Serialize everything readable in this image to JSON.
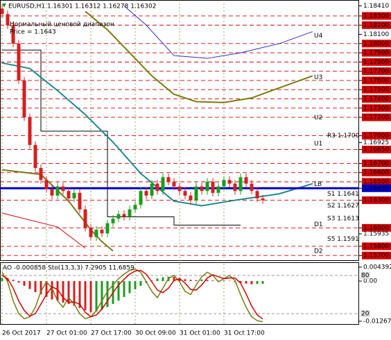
{
  "chart_data": [
    {
      "type": "candlestick",
      "title": "EURUSD,H1  1.16301 1.16312 1.16278 1.16302",
      "subtitle": "Нормальный ценовой диапазон",
      "annotation": "Price = 1.1643",
      "categories": [
        "26 Oct 2017",
        null,
        null,
        null,
        null,
        null,
        null,
        null,
        "27 Oct 01:00",
        null,
        null,
        null,
        null,
        null,
        null,
        null,
        "27 Oct 17:00",
        null,
        null,
        null,
        null,
        null,
        null,
        null,
        "30 Oct 09:00",
        null,
        null,
        null,
        null,
        null,
        null,
        null,
        "31 Oct 01:00",
        null,
        null,
        null,
        null,
        null,
        null,
        null,
        "31 Oct 17:00",
        null,
        null,
        null,
        null,
        null,
        null,
        null
      ],
      "open": [
        1.1838,
        1.1832,
        1.182,
        1.18,
        1.176,
        1.172,
        1.169,
        1.1665,
        1.1652,
        1.1642,
        1.1635,
        1.1645,
        1.164,
        1.1632,
        1.1638,
        1.162,
        1.16,
        1.159,
        1.1598,
        1.1594,
        1.1605,
        1.161,
        1.1615,
        1.1612,
        1.162,
        1.1625,
        1.164,
        1.1635,
        1.1648,
        1.164,
        1.1655,
        1.165,
        1.1645,
        1.164,
        1.1635,
        1.163,
        1.1645,
        1.164,
        1.165,
        1.1638,
        1.1645,
        1.1652,
        1.1648,
        1.164,
        1.1655,
        1.1648,
        1.164,
        1.1632
      ],
      "high": [
        1.1842,
        1.1836,
        1.1824,
        1.1804,
        1.1764,
        1.1724,
        1.1694,
        1.1669,
        1.1656,
        1.1646,
        1.1649,
        1.1649,
        1.1644,
        1.1642,
        1.1642,
        1.1624,
        1.1604,
        1.1602,
        1.1602,
        1.1609,
        1.1614,
        1.1619,
        1.1619,
        1.1624,
        1.1629,
        1.1644,
        1.1644,
        1.1652,
        1.1652,
        1.1659,
        1.1659,
        1.1654,
        1.1649,
        1.1644,
        1.1639,
        1.1649,
        1.1649,
        1.1654,
        1.1654,
        1.1649,
        1.1656,
        1.1656,
        1.1652,
        1.1659,
        1.1659,
        1.1652,
        1.1644,
        1.1636
      ],
      "low": [
        1.1828,
        1.1816,
        1.1796,
        1.1756,
        1.1716,
        1.1686,
        1.1661,
        1.1648,
        1.1638,
        1.1631,
        1.1631,
        1.1636,
        1.1628,
        1.1628,
        1.1616,
        1.1596,
        1.1586,
        1.1586,
        1.159,
        1.159,
        1.1601,
        1.1606,
        1.1608,
        1.1608,
        1.1616,
        1.1621,
        1.1631,
        1.1631,
        1.1636,
        1.1636,
        1.1646,
        1.1641,
        1.1636,
        1.1631,
        1.1626,
        1.1626,
        1.1636,
        1.1636,
        1.1634,
        1.1634,
        1.1641,
        1.1644,
        1.1636,
        1.1636,
        1.1644,
        1.1636,
        1.1628,
        1.1626
      ],
      "close": [
        1.1832,
        1.182,
        1.18,
        1.176,
        1.172,
        1.169,
        1.1665,
        1.1652,
        1.1642,
        1.1635,
        1.1645,
        1.164,
        1.1632,
        1.1638,
        1.162,
        1.16,
        1.159,
        1.1598,
        1.1594,
        1.1605,
        1.161,
        1.1615,
        1.1612,
        1.162,
        1.1625,
        1.164,
        1.1635,
        1.1648,
        1.164,
        1.1655,
        1.165,
        1.1645,
        1.164,
        1.1635,
        1.163,
        1.1645,
        1.164,
        1.165,
        1.1638,
        1.1645,
        1.1652,
        1.1648,
        1.164,
        1.1655,
        1.1648,
        1.164,
        1.1632,
        1.163
      ],
      "up_color": "#1e9b1e",
      "down_color": "#d42020",
      "ylim": [
        1.15649,
        1.18473
      ],
      "yticks": [
        {
          "value": 1.1841,
          "label": "1.18410"
        },
        {
          "value": 1.183,
          "label": "1.18300"
        },
        {
          "value": 1.182,
          "label": "1.18200"
        },
        {
          "value": 1.181,
          "label": "1.18100"
        },
        {
          "value": 1.18,
          "label": "1.18000"
        },
        {
          "value": 1.179,
          "label": "1.17900"
        },
        {
          "value": 1.178,
          "label": "1.17800"
        },
        {
          "value": 1.177,
          "label": "1.17700"
        },
        {
          "value": 1.176,
          "label": "1.17600"
        },
        {
          "value": 1.175,
          "label": "1.17500"
        },
        {
          "value": 1.174,
          "label": "1.17400"
        },
        {
          "value": 1.173,
          "label": "1.17300"
        },
        {
          "value": 1.172,
          "label": "1.17200"
        },
        {
          "value": 1.17,
          "label": "1.17000"
        },
        {
          "value": 1.16925,
          "label": "1.16925"
        },
        {
          "value": 1.1685,
          "label": "1.16850"
        },
        {
          "value": 1.167,
          "label": "1.16700"
        },
        {
          "value": 1.166,
          "label": "1.16600"
        },
        {
          "value": 1.165,
          "label": "1.16500"
        },
        {
          "value": 1.1643,
          "label": "1.16430"
        },
        {
          "value": 1.163,
          "label": "1.16300"
        },
        {
          "value": 1.16,
          "label": "1.16000"
        },
        {
          "value": 1.15935,
          "label": "1.15935"
        },
        {
          "value": 1.158,
          "label": "1.15800"
        },
        {
          "value": 1.157,
          "label": "1.15700"
        }
      ],
      "hlines": {
        "color": "#d40000",
        "values": [
          1.183,
          1.182,
          1.18,
          1.179,
          1.178,
          1.177,
          1.176,
          1.175,
          1.174,
          1.173,
          1.172,
          1.17,
          1.1685,
          1.167,
          1.166,
          1.165,
          1.163,
          1.16,
          1.158,
          1.157
        ]
      },
      "bid_line": {
        "color": "#0000cc",
        "value": 1.1643
      },
      "range_line": {
        "color": "#000000",
        "x": [
          0,
          7,
          7,
          19,
          19,
          31,
          31,
          43
        ],
        "values": [
          1.1793,
          1.1793,
          1.1705,
          1.1705,
          1.1612,
          1.1612,
          1.1603,
          1.1603
        ]
      },
      "overlays": [
        {
          "color": "#1b8a8a",
          "x": [
            0,
            5,
            10,
            15,
            20,
            25,
            31,
            36,
            42,
            50,
            56
          ],
          "values": [
            1.1779,
            1.1773,
            1.1749,
            1.1723,
            1.1693,
            1.1659,
            1.1629,
            1.1624,
            1.163,
            1.1637,
            1.1648
          ]
        },
        {
          "color": "#7a7a10",
          "x": [
            15,
            19,
            23,
            27,
            31,
            35,
            40,
            45,
            50,
            56
          ],
          "values": [
            1.1835,
            1.1815,
            1.179,
            1.1765,
            1.1745,
            1.1737,
            1.1736,
            1.1741,
            1.1752,
            1.1765
          ]
        },
        {
          "color": "#2a2acc",
          "x": [
            22,
            26,
            31,
            37,
            43,
            50,
            56
          ],
          "values": [
            1.1841,
            1.182,
            1.1787,
            1.1784,
            1.179,
            1.18,
            1.1813
          ]
        },
        {
          "color": "#7a7a10",
          "x": [
            0,
            7,
            12,
            16,
            18,
            20
          ],
          "values": [
            1.1663,
            1.1658,
            1.1629,
            1.1598,
            1.1585,
            1.1575
          ]
        },
        {
          "color": "#d40000",
          "x": [
            0,
            10,
            15
          ],
          "values": [
            1.1616,
            1.1601,
            1.1578
          ]
        }
      ],
      "level_labels": [
        {
          "label": "U4",
          "value": 1.1804
        },
        {
          "label": "U3",
          "value": 1.1759
        },
        {
          "label": "U2",
          "value": 1.1715
        },
        {
          "label": "U1",
          "value": 1.1687
        },
        {
          "label": "LB",
          "value": 1.1643
        },
        {
          "label": "D1",
          "value": 1.1599
        },
        {
          "label": "D2",
          "value": 1.157
        }
      ],
      "pivot_labels": [
        {
          "label": "R3 1.1700",
          "value": 1.17
        },
        {
          "label": "S1 1.1641",
          "value": 1.1637
        },
        {
          "label": "S2 1.1627",
          "value": 1.1624
        },
        {
          "label": "S3 1.1613",
          "value": 1.161
        },
        {
          "label": "S5 1.1591",
          "value": 1.1588
        }
      ],
      "grid": true
    },
    {
      "type": "oscillator",
      "title": "AO -0.000858  Sto(13,3,3) 7.2905 11.6859",
      "values": [
        0.001,
        0.0008,
        0.0004,
        -0.0005,
        -0.0015,
        -0.0025,
        -0.0035,
        -0.0042,
        -0.005,
        -0.0058,
        -0.0062,
        -0.0068,
        -0.0072,
        -0.0078,
        -0.0085,
        -0.0092,
        -0.0098,
        -0.0096,
        -0.009,
        -0.0082,
        -0.0072,
        -0.0062,
        -0.005,
        -0.0038,
        -0.0026,
        -0.0015,
        -0.0006,
        0.0002,
        0.0008,
        0.0012,
        0.0014,
        0.0013,
        0.001,
        0.0006,
        0.0004,
        0.0003,
        0.0005,
        0.0004,
        0.0002,
        0.0001,
        0.0002,
        0.0001,
        -0.0003,
        -0.0006,
        -0.0008,
        -0.001,
        -0.0009,
        -0.000858
      ],
      "up_color": "#1e9b1e",
      "down_color": "#d42020",
      "ylim": [
        -0.013334,
        0.005705
      ],
      "yticks": [
        0.004392,
        {
          "value": 0,
          "label": "0.00"
        },
        -0.012678
      ],
      "series": [
        {
          "color": "#7a7a10",
          "axis": "y2",
          "values": [
            85,
            70,
            40,
            20,
            12,
            15,
            30,
            55,
            70,
            60,
            40,
            30,
            45,
            35,
            20,
            12,
            15,
            25,
            40,
            55,
            65,
            75,
            82,
            88,
            90,
            85,
            70,
            55,
            45,
            60,
            75,
            80,
            70,
            55,
            50,
            65,
            78,
            85,
            80,
            70,
            75,
            80,
            72,
            50,
            30,
            15,
            9,
            7.2905
          ]
        },
        {
          "color": "#d40000",
          "axis": "y2",
          "values": [
            80,
            75,
            60,
            40,
            25,
            16,
            20,
            35,
            50,
            62,
            58,
            45,
            38,
            38,
            35,
            22,
            15,
            18,
            27,
            40,
            53,
            65,
            74,
            82,
            87,
            88,
            82,
            70,
            57,
            53,
            60,
            72,
            75,
            68,
            58,
            57,
            65,
            76,
            81,
            78,
            75,
            76,
            76,
            68,
            51,
            32,
            18,
            11.6859
          ]
        }
      ],
      "y2lim": [
        4.7,
        99.6
      ],
      "y2ticks": [
        80,
        20
      ]
    }
  ]
}
